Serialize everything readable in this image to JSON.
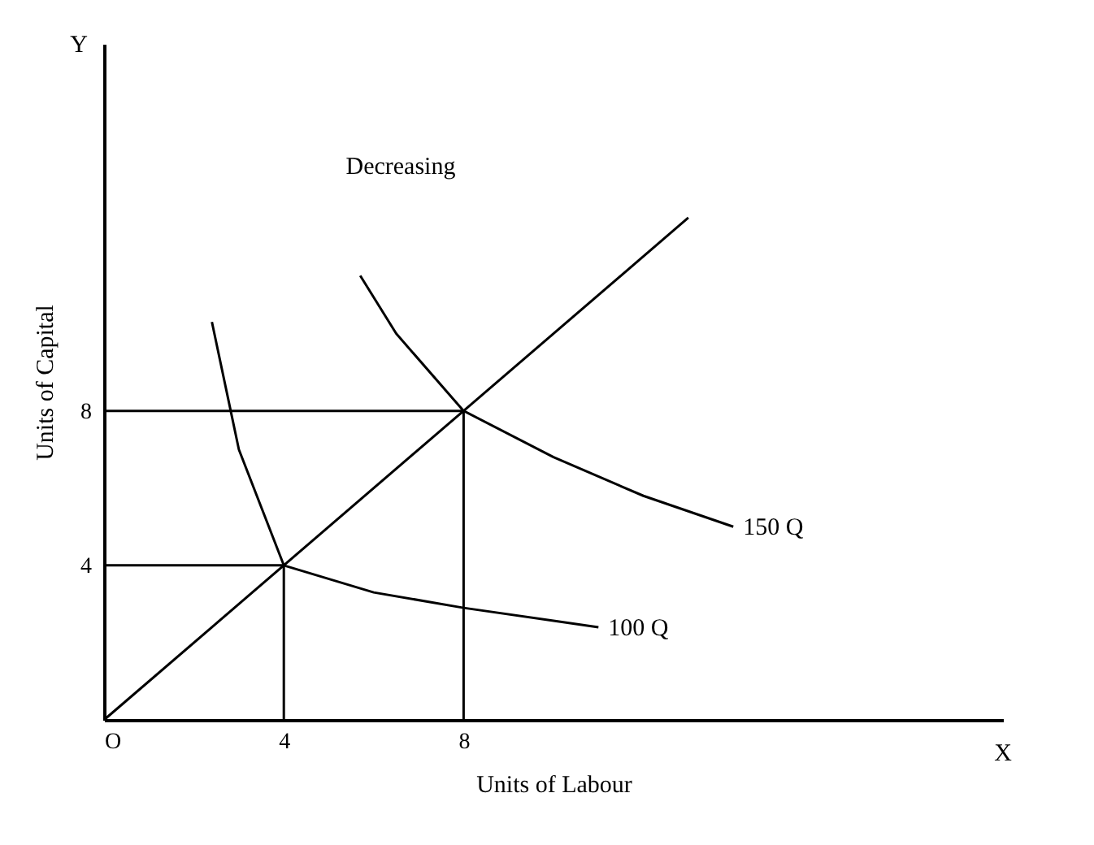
{
  "chart_data": {
    "type": "line",
    "xlabel": "Units of Labour",
    "ylabel": "Units of Capital",
    "xlim": [
      0,
      20
    ],
    "ylim": [
      0,
      17.5
    ],
    "xticks": [
      {
        "value": 0,
        "label": "O"
      },
      4,
      8
    ],
    "yticks": [
      4,
      8
    ],
    "grid": false,
    "marker": "none",
    "line_style": "solid",
    "annotations": [
      "Decreasing",
      "Y",
      "X"
    ],
    "series": [
      {
        "name": "100 Q",
        "color": "#000000",
        "x": [
          2.4,
          3,
          4,
          6,
          8,
          11
        ],
        "values": [
          10.3,
          7,
          4,
          3.3,
          2.9,
          2.4
        ]
      },
      {
        "name": "150 Q",
        "color": "#000000",
        "x": [
          5.7,
          6.5,
          8,
          10,
          12,
          14
        ],
        "values": [
          11.5,
          10,
          8,
          6.8,
          5.8,
          5
        ]
      },
      {
        "color": "#000000",
        "x": [
          0,
          13
        ],
        "values": [
          0,
          13
        ]
      },
      {
        "color": "#000000",
        "x": [
          0,
          4,
          4
        ],
        "values": [
          4,
          4,
          0
        ]
      },
      {
        "color": "#000000",
        "x": [
          0,
          8,
          8
        ],
        "values": [
          8,
          8,
          0
        ]
      }
    ]
  }
}
